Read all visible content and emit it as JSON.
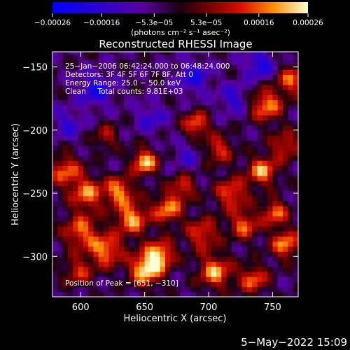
{
  "chart_data": {
    "type": "heatmap",
    "title": "Reconstructed RHESSI Image",
    "xlabel": "Heliocentric X (arcsec)",
    "ylabel": "Heliocentric Y (arcsec)",
    "xlim": [
      578,
      770
    ],
    "ylim": [
      -332,
      -138
    ],
    "x_ticks": [
      600,
      650,
      700,
      750
    ],
    "y_ticks": [
      -150,
      -200,
      -250,
      -300
    ],
    "x_tick_labels": [
      "600",
      "650",
      "700",
      "750"
    ],
    "y_tick_labels": [
      "−150",
      "−200",
      "−250",
      "−300"
    ],
    "colorbar": {
      "range": [
        -0.00026,
        0.00026
      ],
      "ticks": [
        -0.00026,
        -0.00016,
        -5.3e-05,
        5.3e-05,
        0.00016,
        0.00026
      ],
      "tick_labels": [
        "−0.00026",
        "−0.00016",
        "−5.3e−05",
        "5.3e−05",
        "0.00016",
        "0.00026"
      ],
      "unit_label": "(photons cm⁻² s⁻¹ asec⁻²)"
    },
    "annotations": [
      "25−Jan−2006 06:42:24.000 to 06:48:24.000",
      "Detectors: 3F 4F 5F 6F 7F 8F, Att 0",
      "Energy Range: 25.0 − 50.0 keV",
      "Clean     Total counts: 9.81E+03"
    ],
    "peak_label": "Position of Peak = [651, −310]",
    "peak": {
      "x": 651,
      "y": -310
    },
    "blobs": [
      {
        "x": 651,
        "y": -310,
        "amp": 1.0,
        "r": 9
      },
      {
        "x": 662,
        "y": -298,
        "amp": 0.85,
        "r": 8
      },
      {
        "x": 620,
        "y": -295,
        "amp": 0.8,
        "r": 9
      },
      {
        "x": 600,
        "y": -280,
        "amp": 0.7,
        "r": 10
      },
      {
        "x": 640,
        "y": -270,
        "amp": 0.85,
        "r": 9
      },
      {
        "x": 668,
        "y": -262,
        "amp": 0.8,
        "r": 8
      },
      {
        "x": 605,
        "y": -250,
        "amp": 0.75,
        "r": 9
      },
      {
        "x": 630,
        "y": -248,
        "amp": 0.8,
        "r": 8
      },
      {
        "x": 588,
        "y": -232,
        "amp": 0.7,
        "r": 9
      },
      {
        "x": 650,
        "y": -225,
        "amp": 0.95,
        "r": 7
      },
      {
        "x": 690,
        "y": -195,
        "amp": 0.75,
        "r": 7
      },
      {
        "x": 718,
        "y": -250,
        "amp": 0.7,
        "r": 9
      },
      {
        "x": 742,
        "y": -232,
        "amp": 0.85,
        "r": 8
      },
      {
        "x": 760,
        "y": -212,
        "amp": 0.6,
        "r": 8
      },
      {
        "x": 745,
        "y": -180,
        "amp": 0.8,
        "r": 9
      },
      {
        "x": 765,
        "y": -160,
        "amp": 0.7,
        "r": 8
      },
      {
        "x": 708,
        "y": -215,
        "amp": 0.6,
        "r": 8
      },
      {
        "x": 695,
        "y": -282,
        "amp": 0.65,
        "r": 9
      },
      {
        "x": 728,
        "y": -275,
        "amp": 0.7,
        "r": 8
      },
      {
        "x": 760,
        "y": -290,
        "amp": 0.8,
        "r": 8
      },
      {
        "x": 705,
        "y": -312,
        "amp": 0.85,
        "r": 9
      },
      {
        "x": 735,
        "y": -318,
        "amp": 0.7,
        "r": 8
      },
      {
        "x": 752,
        "y": -265,
        "amp": 0.75,
        "r": 7
      },
      {
        "x": 598,
        "y": -312,
        "amp": 0.55,
        "r": 8
      },
      {
        "x": 680,
        "y": -245,
        "amp": 0.6,
        "r": 7
      },
      {
        "x": 620,
        "y": -205,
        "amp": 0.45,
        "r": 7
      }
    ],
    "dips": [
      {
        "x": 612,
        "y": -168,
        "amp": 0.5,
        "r": 9
      },
      {
        "x": 688,
        "y": -158,
        "amp": 0.45,
        "r": 9
      },
      {
        "x": 720,
        "y": -175,
        "amp": 0.4,
        "r": 8
      },
      {
        "x": 740,
        "y": -148,
        "amp": 0.5,
        "r": 8
      },
      {
        "x": 655,
        "y": -190,
        "amp": 0.35,
        "r": 8
      },
      {
        "x": 683,
        "y": -220,
        "amp": 0.3,
        "r": 7
      },
      {
        "x": 590,
        "y": -195,
        "amp": 0.35,
        "r": 8
      }
    ]
  },
  "footer": {
    "timestamp": "5−May−2022 15:09"
  }
}
